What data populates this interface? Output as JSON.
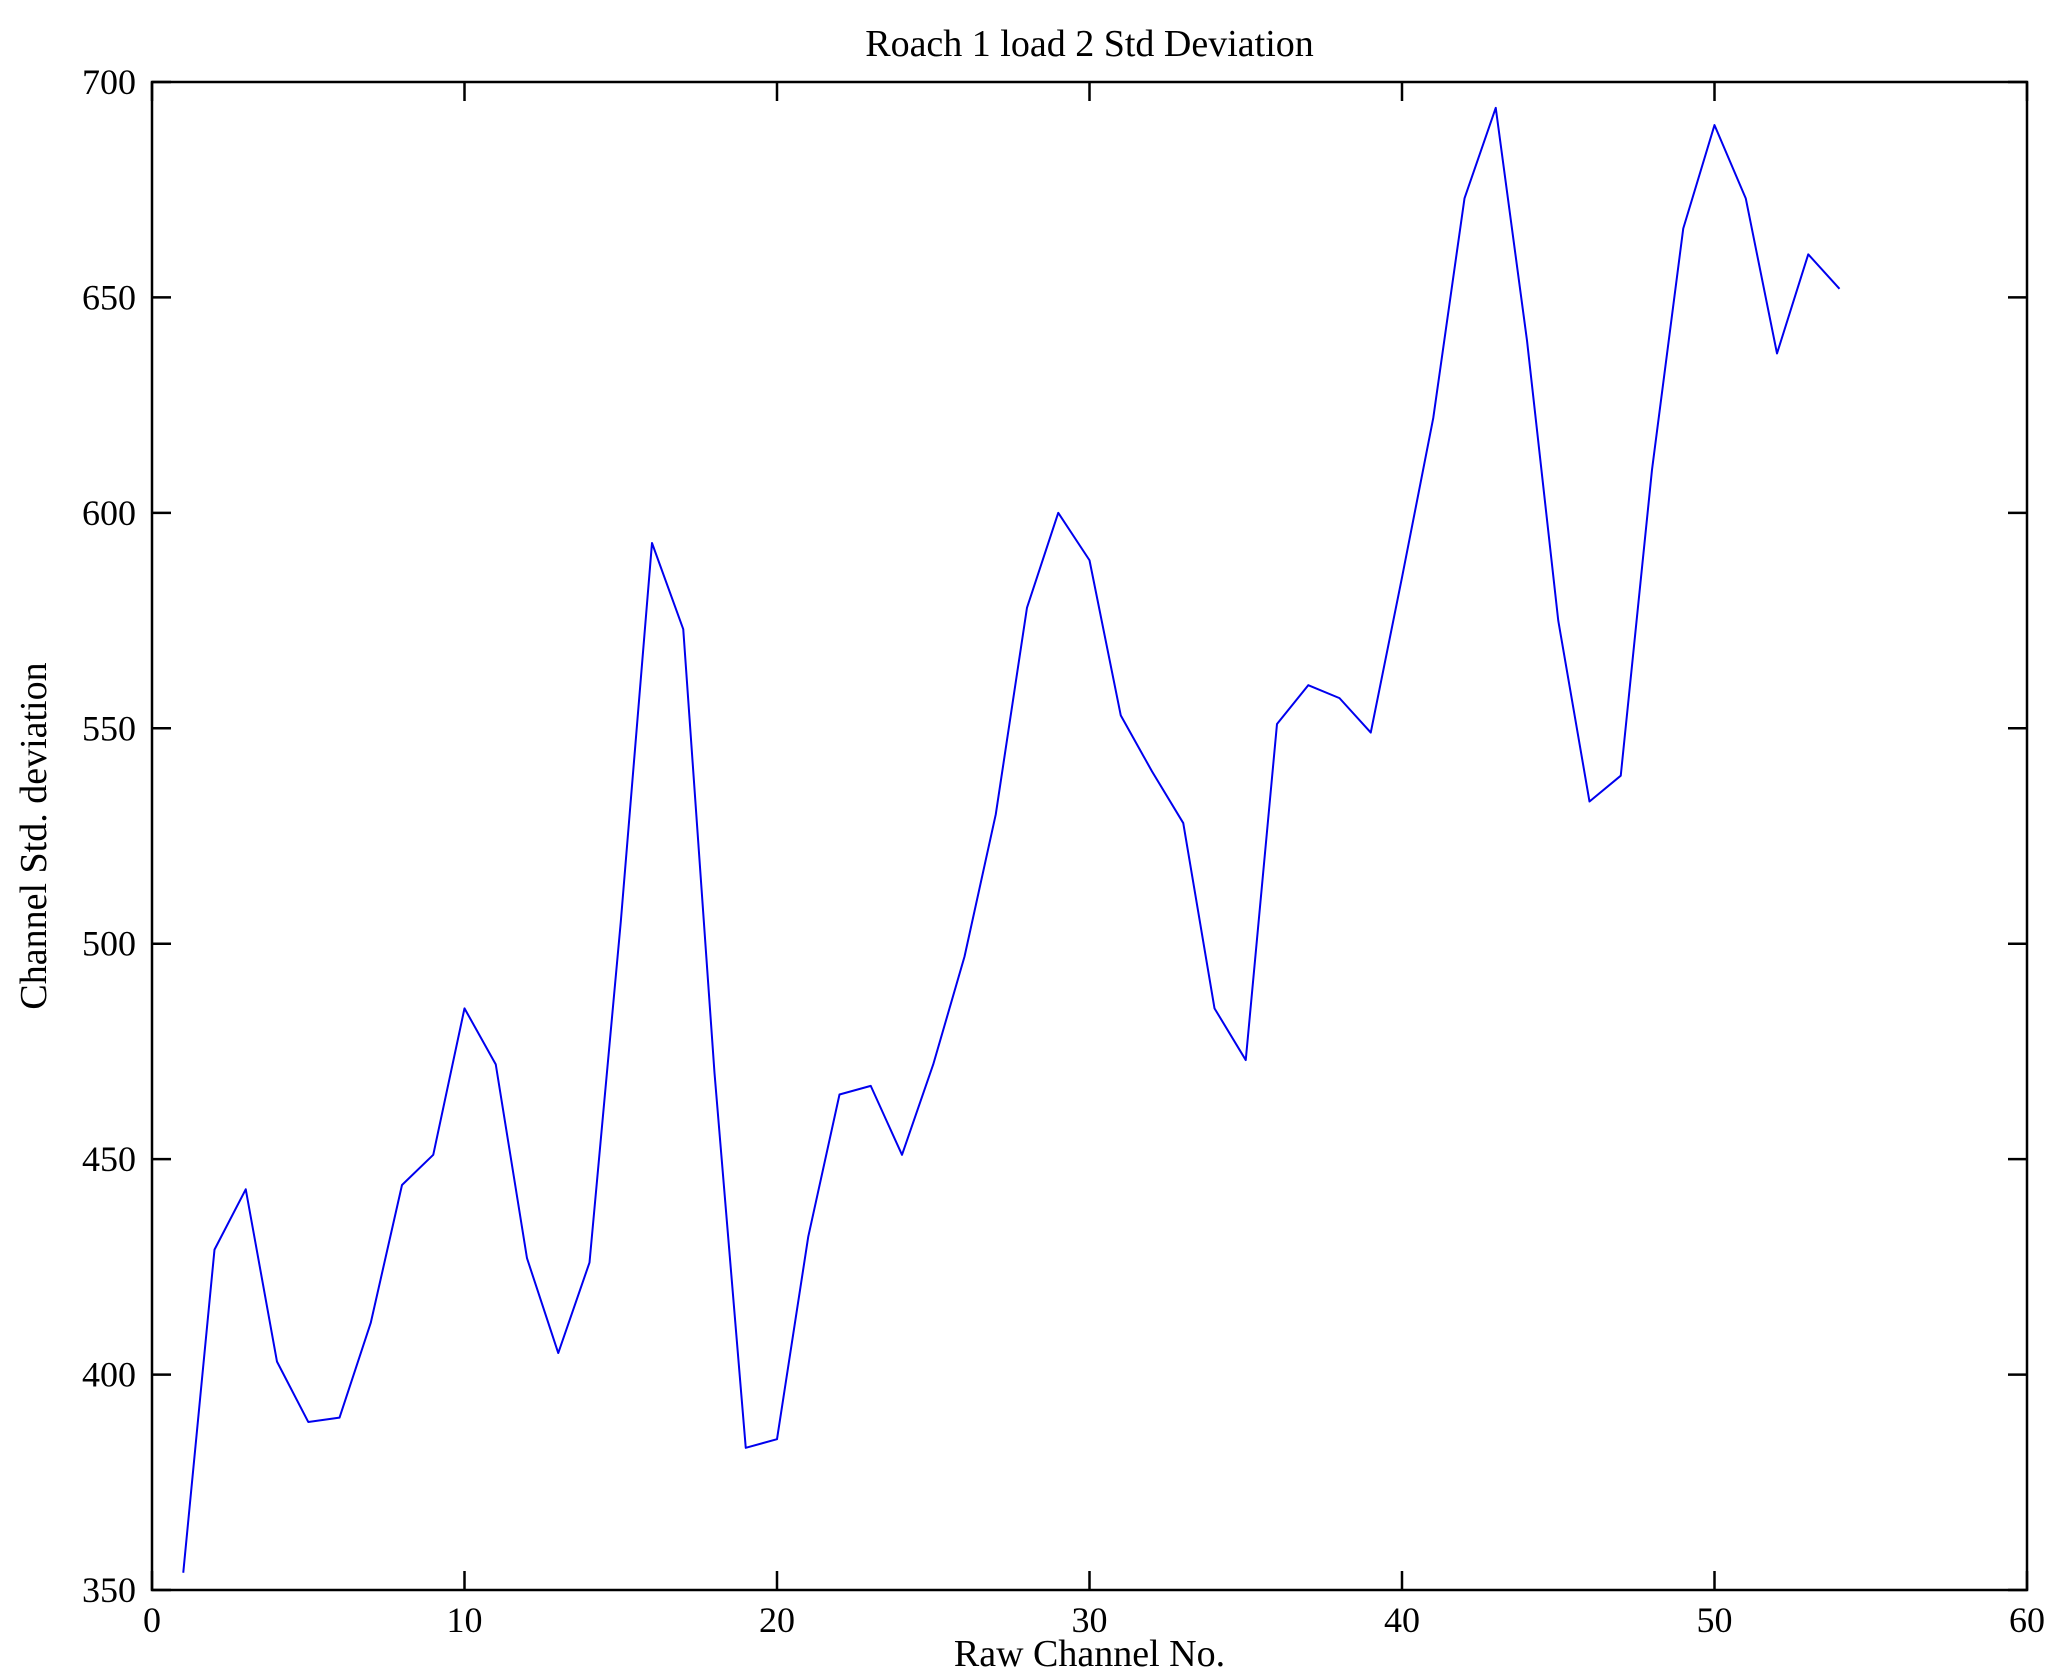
{
  "figure": {
    "title": "Roach 1 load 2 Std Deviation",
    "xlabel": "Raw Channel No.",
    "ylabel": "Channel Std. deviation"
  },
  "chart_data": {
    "type": "line",
    "title": "Roach 1 load 2 Std Deviation",
    "xlabel": "Raw Channel No.",
    "ylabel": "Channel Std. deviation",
    "xlim": [
      0,
      60
    ],
    "ylim": [
      350,
      700
    ],
    "x_ticks": [
      0,
      10,
      20,
      30,
      40,
      50,
      60
    ],
    "y_ticks": [
      350,
      400,
      450,
      500,
      550,
      600,
      650,
      700
    ],
    "grid": false,
    "legend": "none",
    "line_color": "#0000ee",
    "frame_color": "#000000",
    "series_name": "Channel Std. deviation vs Raw Channel No.",
    "x": [
      1,
      2,
      3,
      4,
      5,
      6,
      7,
      8,
      9,
      10,
      11,
      12,
      13,
      14,
      15,
      16,
      17,
      18,
      19,
      20,
      21,
      22,
      23,
      24,
      25,
      26,
      27,
      28,
      29,
      30,
      31,
      32,
      33,
      34,
      35,
      36,
      37,
      38,
      39,
      40,
      41,
      42,
      43,
      44,
      45,
      46,
      47,
      48,
      49,
      50,
      51,
      52,
      53,
      54
    ],
    "y": [
      354,
      429,
      443,
      403,
      389,
      390,
      412,
      444,
      451,
      485,
      472,
      427,
      405,
      426,
      505,
      593,
      573,
      470,
      383,
      385,
      432,
      465,
      467,
      451,
      472,
      497,
      530,
      578,
      600,
      589,
      553,
      540,
      528,
      485,
      473,
      551,
      560,
      557,
      549,
      585,
      622,
      673,
      694,
      640,
      575,
      533,
      539,
      610,
      666,
      690,
      673,
      637,
      660,
      652
    ]
  }
}
